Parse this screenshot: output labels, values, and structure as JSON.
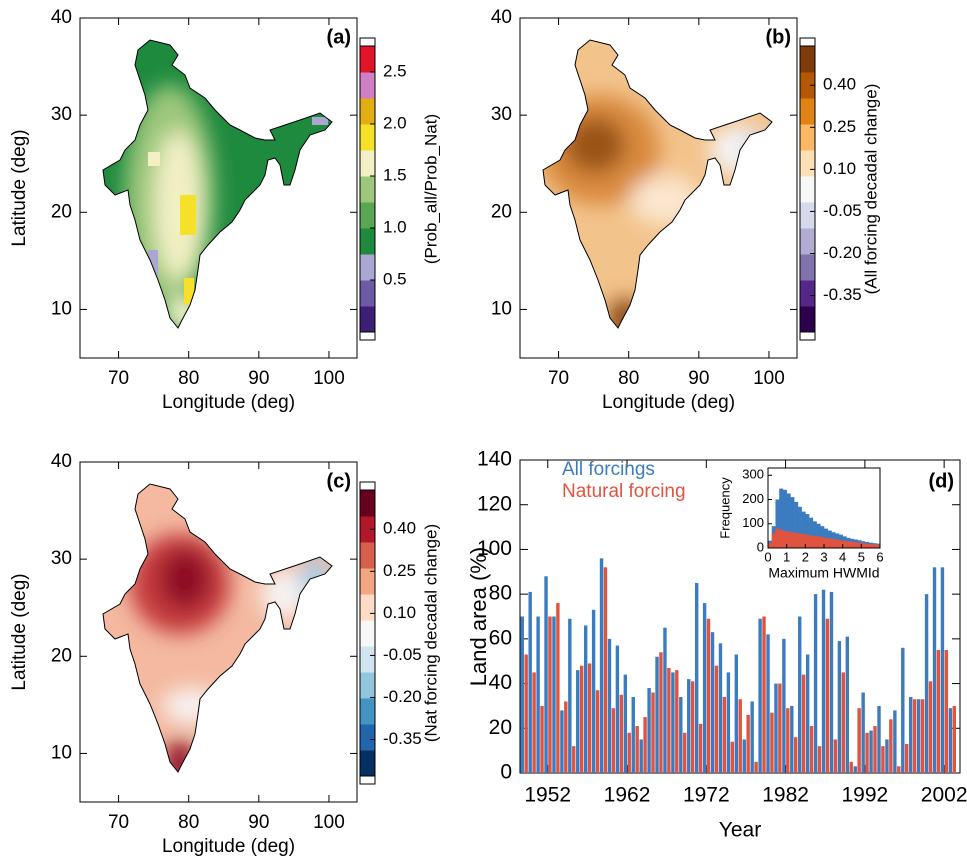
{
  "chart_data": [
    {
      "type": "map",
      "panel_label": "(a)",
      "xlabel": "Longitude (deg)",
      "ylabel": "Latitude (deg)",
      "xlim": [
        64.5,
        104
      ],
      "xticks": [
        70,
        80,
        90,
        100
      ],
      "ylim": [
        5,
        40
      ],
      "yticks": [
        10,
        20,
        30,
        40
      ],
      "colorbar": {
        "label": "(Prob_all/Prob_Nat)",
        "clim": [
          0,
          2.75
        ],
        "ticks": [
          0.5,
          {
            "value": 1,
            "label": "1.0"
          },
          1.5,
          {
            "value": 2,
            "label": "2.0"
          },
          2.5
        ],
        "colors": [
          "#3c1e74",
          "#6d5aa6",
          "#aaa8d3",
          "#1e8a3e",
          "#5aa655",
          "#9cc77c",
          "#f2f0c4",
          "#f5e02a",
          "#e2ae12",
          "#cf7fc4",
          "#e0142a"
        ]
      }
    },
    {
      "type": "map",
      "panel_label": "(b)",
      "xlabel": "Longitude (deg)",
      "xlim": [
        64.5,
        104
      ],
      "xticks": [
        70,
        80,
        90,
        100
      ],
      "ylim": [
        5,
        40
      ],
      "yticks": [
        10,
        20,
        30,
        40
      ],
      "colorbar": {
        "label": "(All forcing decadal change)",
        "clim": [
          -0.48,
          0.54
        ],
        "ticks": [
          {
            "value": 0.4,
            "label": "0.40"
          },
          0.25,
          {
            "value": 0.1,
            "label": "0.10"
          },
          -0.05,
          {
            "value": -0.2,
            "label": "-0.20"
          },
          -0.35
        ],
        "colors": [
          "#2d004b",
          "#542788",
          "#8073ac",
          "#b2abd2",
          "#d8daeb",
          "#f7f7f7",
          "#fee0b6",
          "#fdb863",
          "#e08214",
          "#b35806",
          "#7f3b08"
        ]
      }
    },
    {
      "type": "map",
      "panel_label": "(c)",
      "xlabel": "Longitude (deg)",
      "ylabel": "Latitude (deg)",
      "xlim": [
        64.5,
        104
      ],
      "xticks": [
        70,
        80,
        90,
        100
      ],
      "ylim": [
        5,
        40
      ],
      "yticks": [
        10,
        20,
        30,
        40
      ],
      "colorbar": {
        "label": "(Nat forcing decadal change)",
        "clim": [
          -0.48,
          0.54
        ],
        "ticks": [
          {
            "value": 0.4,
            "label": "0.40"
          },
          0.25,
          {
            "value": 0.1,
            "label": "0.10"
          },
          -0.05,
          {
            "value": -0.2,
            "label": "-0.20"
          },
          -0.35
        ],
        "colors": [
          "#053061",
          "#2166ac",
          "#4393c3",
          "#92c5de",
          "#d1e5f0",
          "#f7f7f7",
          "#fddbc7",
          "#f4a582",
          "#d6604d",
          "#b2182b",
          "#67001f"
        ]
      }
    },
    {
      "type": "bar",
      "panel_label": "(d)",
      "xlabel": "Year",
      "ylabel": "Land area (%)",
      "x": [
        1949,
        1950,
        1951,
        1952,
        1953,
        1954,
        1955,
        1956,
        1957,
        1958,
        1959,
        1960,
        1961,
        1962,
        1963,
        1964,
        1965,
        1966,
        1967,
        1968,
        1969,
        1970,
        1971,
        1972,
        1973,
        1974,
        1975,
        1976,
        1977,
        1978,
        1979,
        1980,
        1981,
        1982,
        1983,
        1984,
        1985,
        1986,
        1987,
        1988,
        1989,
        1990,
        1991,
        1992,
        1993,
        1994,
        1995,
        1996,
        1997,
        1998,
        1999,
        2000,
        2001,
        2002,
        2003
      ],
      "xlim": [
        1948.5,
        2004
      ],
      "xticks": [
        1952,
        1962,
        1972,
        1982,
        1992,
        2002
      ],
      "ylim": [
        0,
        140
      ],
      "yticks": [
        0,
        20,
        40,
        60,
        80,
        100,
        120,
        140
      ],
      "legend": "upper left",
      "series": [
        {
          "name": "All forcings",
          "color": "#3b7cc0",
          "values": [
            70,
            81,
            70,
            88,
            70,
            28,
            69,
            46,
            66,
            73,
            96,
            60,
            57,
            44,
            34,
            15,
            38,
            52,
            65,
            45,
            34,
            42,
            85,
            76,
            63,
            58,
            45,
            53,
            15,
            32,
            69,
            62,
            40,
            60,
            30,
            70,
            53,
            80,
            82,
            81,
            59,
            61,
            3,
            36,
            19,
            30,
            15,
            28,
            56,
            34,
            33,
            80,
            92,
            92,
            29
          ]
        },
        {
          "name": "Natural forcing",
          "color": "#e0543f",
          "values": [
            53,
            45,
            30,
            70,
            76,
            32,
            12,
            48,
            49,
            37,
            92,
            29,
            35,
            18,
            21,
            25,
            36,
            54,
            47,
            46,
            18,
            41,
            22,
            69,
            48,
            34,
            14,
            33,
            26,
            5,
            70,
            27,
            40,
            29,
            16,
            44,
            21,
            12,
            69,
            15,
            45,
            5,
            29,
            18,
            21,
            12,
            24,
            3,
            13,
            33,
            33,
            41,
            55,
            55,
            30
          ]
        }
      ],
      "inset": {
        "type": "histogram",
        "xlabel": "Maximum HWMId",
        "ylabel": "Frequency",
        "bins": [
          0,
          0.2,
          0.4,
          0.6,
          0.8,
          1,
          1.2,
          1.4,
          1.6,
          1.8,
          2,
          2.2,
          2.4,
          2.6,
          2.8,
          3,
          3.2,
          3.4,
          3.6,
          3.8,
          4,
          4.2,
          4.4,
          4.6,
          4.8,
          5,
          5.2,
          5.4,
          5.6,
          5.8,
          6
        ],
        "xlim": [
          0,
          6
        ],
        "xticks": [
          0,
          1,
          2,
          3,
          4,
          5,
          6
        ],
        "ylim": [
          0,
          330
        ],
        "yticks": [
          0,
          100,
          200,
          300
        ],
        "series": [
          {
            "color": "#3b7cc0",
            "values": [
              30,
              90,
              200,
              245,
              240,
              225,
              210,
              190,
              170,
              150,
              140,
              125,
              110,
              100,
              90,
              80,
              72,
              65,
              60,
              55,
              48,
              42,
              38,
              35,
              32,
              28,
              25,
              22,
              20,
              18
            ]
          },
          {
            "color": "#e0543f",
            "values": [
              20,
              60,
              80,
              75,
              70,
              68,
              65,
              62,
              60,
              58,
              55,
              52,
              50,
              48,
              45,
              42,
              40,
              38,
              35,
              32,
              30,
              28,
              26,
              24,
              22,
              20,
              18,
              16,
              15,
              14
            ]
          }
        ]
      }
    }
  ]
}
